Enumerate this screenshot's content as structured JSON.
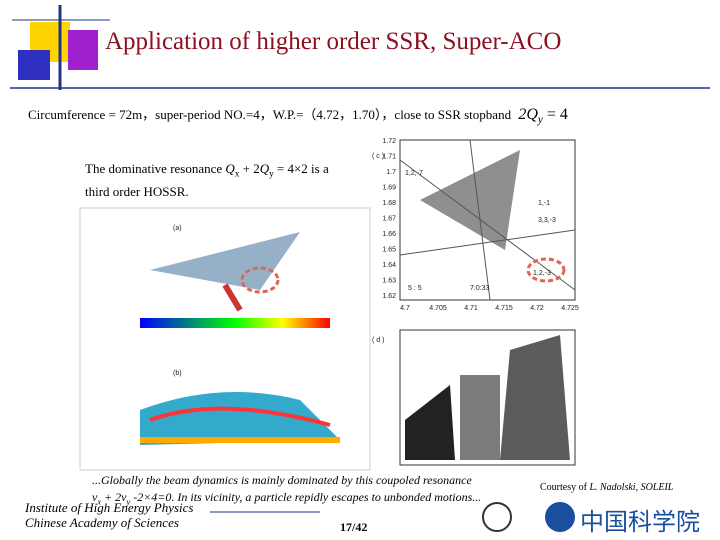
{
  "title": "Application of higher order SSR, Super-ACO",
  "intro": {
    "text": "Circumference = 72m，super-period NO.=4，W.P.=（4.72，1.70），close to SSR stopband",
    "formula": [
      "2Q",
      "y",
      " = 4"
    ]
  },
  "note": {
    "line1": [
      "The dominative resonance ",
      "Q",
      "x",
      " + 2",
      "Q",
      "y",
      " = 4×2  is a"
    ],
    "line2": "third order HOSSR."
  },
  "caption": {
    "line1": "...Globally the beam dynamics is mainly dominated by this coupoled resonance",
    "line2": [
      "ν",
      "x",
      " + 2",
      "ν",
      "y",
      " -2×4=0. In its vicinity, a particle repidly escapes to unbonded motions..."
    ]
  },
  "credit": {
    "prefix": "Courtesy of ",
    "name": "L. Nadolski, SOLEIL"
  },
  "institute": [
    "Institute of High Energy Physics",
    "Chinese Academy of Sciences"
  ],
  "page": "17/42",
  "cas_logo": "中国科学院",
  "figure_c": {
    "label": "( c )",
    "yticks": [
      "1.72",
      "1.71",
      "1.7",
      "1.69",
      "1.68",
      "1.67",
      "1.66",
      "1.65",
      "1.64",
      "1.63",
      "1.62"
    ],
    "xticks": [
      "4.7",
      "4.705",
      "4.71",
      "4.715",
      "4.72",
      "4.725"
    ],
    "annotations": [
      "1,2,-7",
      "1,-1",
      "3,3,-3",
      "1,2,-3",
      "5 : 5",
      "7:0:33"
    ]
  },
  "figure_a": {
    "label": "(a)"
  },
  "figure_b": {
    "label": "(b)"
  },
  "figure_d": {
    "label": "( d )"
  }
}
